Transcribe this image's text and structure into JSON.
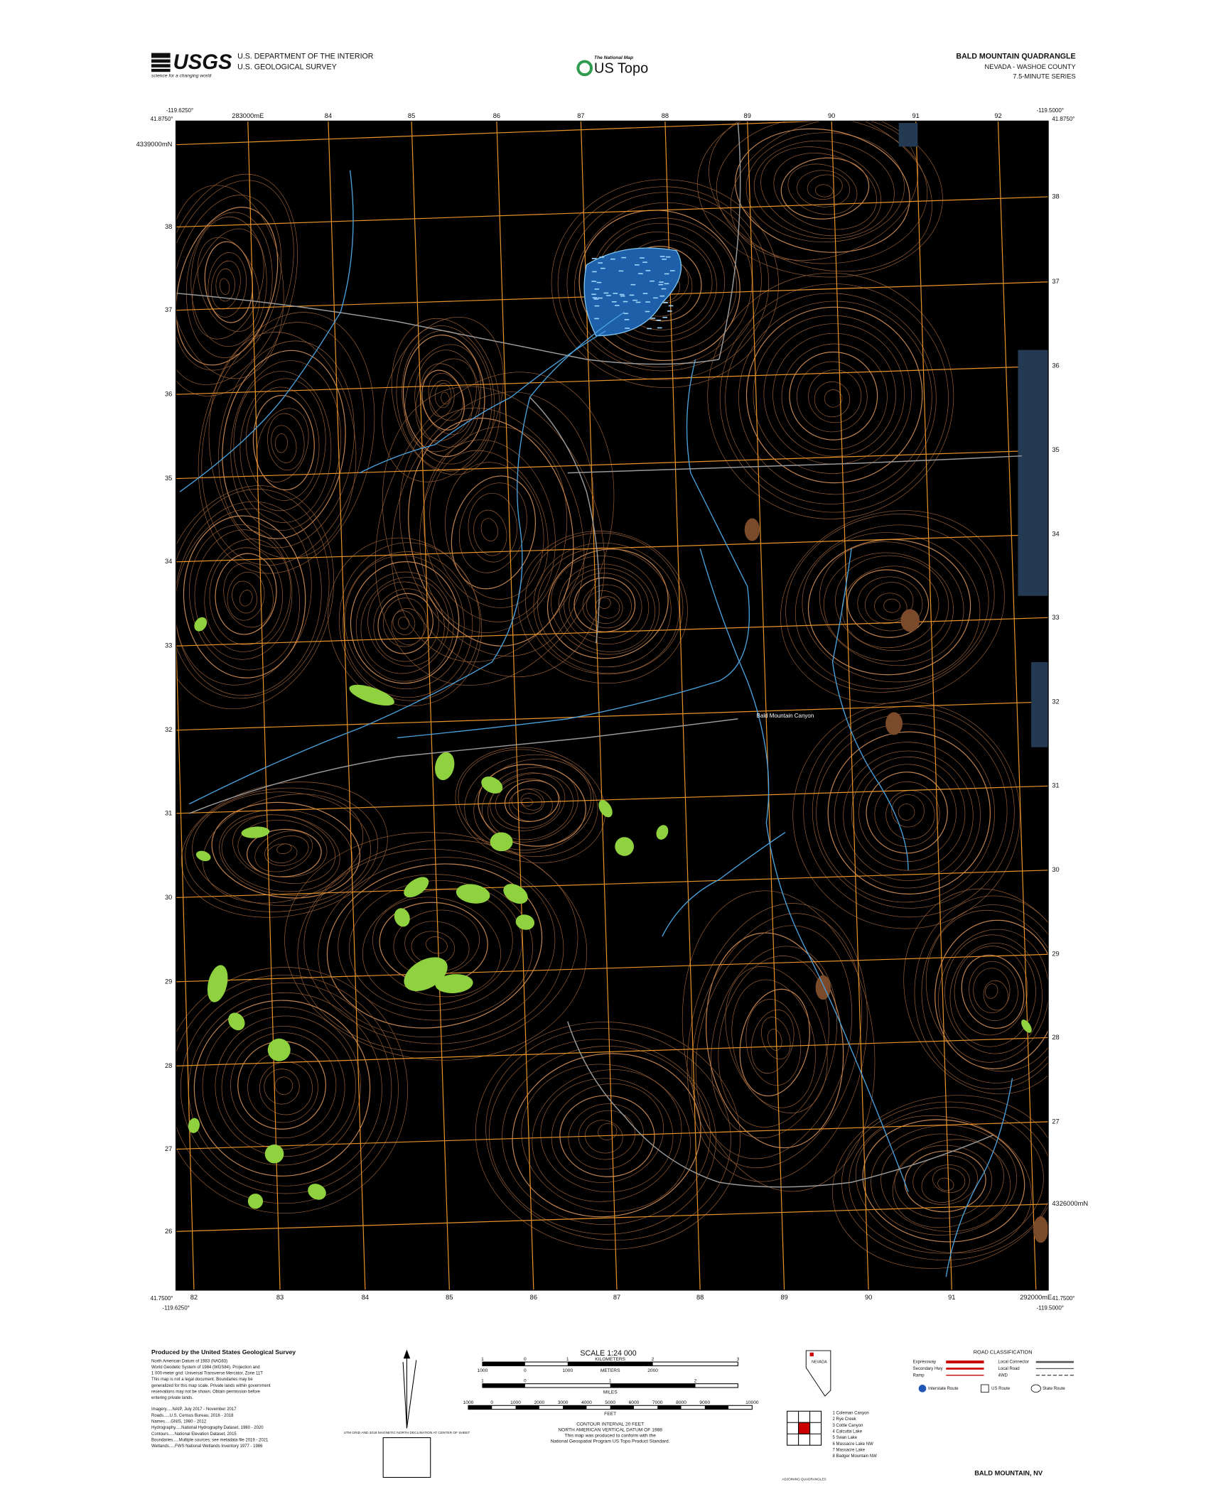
{
  "header": {
    "usgs_logo": "USGS",
    "usgs_tagline": "science for a changing world",
    "agency_line1": "U.S. DEPARTMENT OF THE INTERIOR",
    "agency_line2": "U.S. GEOLOGICAL SURVEY",
    "national_map": "The National Map",
    "us_topo": "US Topo",
    "quad_title": "BALD MOUNTAIN QUADRANGLE",
    "state_county": "NEVADA - WASHOE COUNTY",
    "series": "7.5-MINUTE SERIES"
  },
  "corners": {
    "nw_lon": "-119.6250°",
    "nw_lat": "41.8750°",
    "ne_lon": "-119.5000°",
    "ne_lat": "41.8750°",
    "sw_lat": "41.7500°",
    "sw_lon": "-119.6250°",
    "se_lat": "41.7500°",
    "se_lon": "-119.5000°"
  },
  "grid": {
    "top": [
      "283000mE",
      "84",
      "85",
      "86",
      "87",
      "88",
      "89",
      "90",
      "91",
      "92"
    ],
    "bottom": [
      "82",
      "83",
      "84",
      "85",
      "86",
      "87",
      "88",
      "89",
      "90",
      "91",
      "292000mE"
    ],
    "left": [
      "4339000mN",
      "38",
      "37",
      "36",
      "35",
      "34",
      "33",
      "32",
      "31",
      "30",
      "29",
      "28",
      "27",
      "26"
    ],
    "right": [
      "38",
      "37",
      "36",
      "35",
      "34",
      "33",
      "32",
      "31",
      "30",
      "29",
      "28",
      "27",
      "4326000mN"
    ]
  },
  "map_labels": [
    "Bald Mountain Canyon"
  ],
  "footer": {
    "producer": "Produced by the United States Geological Survey",
    "credits": [
      "North American Datum of 1983 (NAD83)",
      "World Geodetic System of 1984 (WGS84). Projection and",
      "1 000-meter grid: Universal Transverse Mercator, Zone 11T",
      "This map is not a legal document. Boundaries may be",
      "generalized for this map scale. Private lands within government",
      "reservations may not be shown. Obtain permission before",
      "entering private lands."
    ],
    "sources": [
      "Imagery.....NAIP, July 2017 - November 2017",
      "Roads.....U.S. Census Bureau, 2016 - 2018",
      "Names.....GNIS, 1980 - 2012",
      "Hydrography.....National Hydrography Dataset, 1980 - 2020",
      "Contours.....National Elevation Dataset, 2015",
      "Boundaries.....Multiple sources; see metadata file 2019 - 2021",
      "Wetlands.....FWS National Wetlands Inventory 1977 - 1986"
    ],
    "declination": "UTM GRID AND 2018 MAGNETIC NORTH DECLINATION AT CENTER OF SHEET",
    "scale": {
      "title": "SCALE 1:24 000",
      "km_unit": "KILOMETERS",
      "km_ticks": [
        "1",
        "0",
        "1",
        "2",
        "3"
      ],
      "m_unit": "METERS",
      "m_ticks": [
        "1000",
        "0",
        "1000",
        "2000"
      ],
      "mi_unit": "MILES",
      "mi_ticks": [
        "1",
        "0",
        "1",
        "2"
      ],
      "ft_unit": "FEET",
      "ft_ticks": [
        "1000",
        "0",
        "1000",
        "2000",
        "3000",
        "4000",
        "5000",
        "6000",
        "7000",
        "8000",
        "9000",
        "10000"
      ]
    },
    "contour": [
      "CONTOUR INTERVAL 20 FEET",
      "NORTH AMERICAN VERTICAL DATUM OF 1988",
      "This map was produced to conform with the",
      "National Geospatial Program US Topo Product Standard."
    ],
    "state_name": "NEVADA",
    "road": {
      "title": "ROAD CLASSIFICATION",
      "left": [
        "Expressway",
        "Secondary Hwy",
        "Ramp"
      ],
      "right": [
        "Local Connector",
        "Local Road",
        "4WD"
      ],
      "shields": [
        "Interstate Route",
        "US Route",
        "State Route"
      ]
    },
    "adjoining": [
      "1 Coleman Canyon",
      "2 Rye Creek",
      "3 Cottle Canyon",
      "4 Calcutta Lake",
      "5 Swan Lake",
      "6 Massacre Lake NW",
      "7 Massacre Lake",
      "8 Badger Mountain NW"
    ],
    "adjoining_title": "ADJOINING QUADRANGLES",
    "sheet_name": "BALD MOUNTAIN, NV"
  }
}
